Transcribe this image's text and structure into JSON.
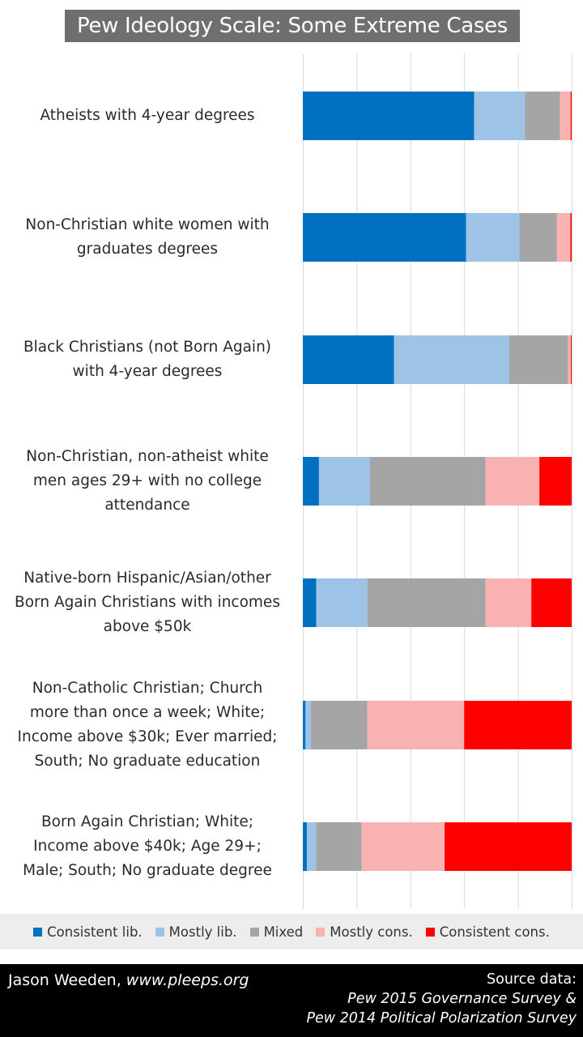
{
  "title": "Pew Ideology Scale: Some Extreme Cases",
  "chart_data": {
    "type": "bar",
    "orientation": "horizontal",
    "stacked": "100%",
    "title": "Pew Ideology Scale: Some Extreme Cases",
    "categories": [
      "Atheists with 4-year degrees",
      "Non-Christian white women with graduates degrees",
      "Black Christians (not Born Again) with 4-year degrees",
      "Non-Christian, non-atheist white men ages 29+ with no college attendance",
      "Native-born Hispanic/Asian/other Born Again Christians with incomes above $50k",
      "Non-Catholic Christian; Church more than once a week; White; Income above $30k; Ever married; South; No graduate education",
      "Born Again Christian; White; Income above $40k; Age 29+; Male; South; No graduate degree"
    ],
    "series": [
      {
        "name": "Consistent lib.",
        "color": "#0070c0",
        "values": [
          64,
          61,
          34,
          6,
          5,
          1,
          1.5
        ]
      },
      {
        "name": "Mostly lib.",
        "color": "#9dc3e6",
        "values": [
          19,
          20,
          43,
          19,
          19,
          2,
          3.5
        ]
      },
      {
        "name": "Mixed",
        "color": "#a5a5a5",
        "values": [
          13,
          14,
          22,
          43,
          44,
          21,
          17
        ]
      },
      {
        "name": "Mostly cons.",
        "color": "#f8b2b2",
        "values": [
          4,
          5,
          1,
          20,
          17,
          36,
          31
        ]
      },
      {
        "name": "Consistent cons.",
        "color": "#ff0000",
        "values": [
          0.4,
          0.5,
          0.3,
          12,
          15,
          40,
          47.5
        ]
      }
    ],
    "xlim": [
      0,
      100
    ],
    "grid": true,
    "legend_position": "bottom"
  },
  "category_lines": [
    [
      "Atheists with 4-year degrees"
    ],
    [
      "Non-Christian white women with",
      "graduates degrees"
    ],
    [
      "Black Christians (not Born Again)",
      "with 4-year degrees"
    ],
    [
      "Non-Christian, non-atheist white",
      "men ages 29+ with no college",
      "attendance"
    ],
    [
      "Native-born Hispanic/Asian/other",
      "Born Again Christians with incomes",
      "above $50k"
    ],
    [
      "Non-Catholic Christian; Church",
      "more than once a week; White;",
      "Income above $30k; Ever married;",
      "South; No graduate education"
    ],
    [
      "Born Again Christian; White;",
      "Income above $40k; Age 29+;",
      "Male; South; No graduate degree"
    ]
  ],
  "footer": {
    "author_name": "Jason Weeden, ",
    "author_site": "www.pleeps.org",
    "source_label": "Source data:",
    "source_1": "Pew 2015 Governance Survey &",
    "source_2": "Pew 2014 Political Polarization Survey"
  }
}
